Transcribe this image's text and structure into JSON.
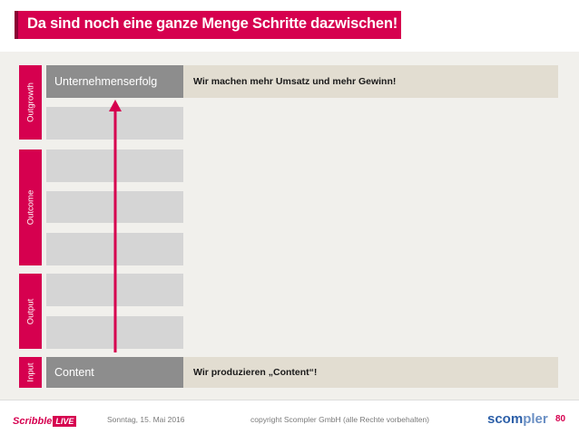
{
  "title": "Da sind noch eine ganze Menge Schritte dazwischen!",
  "sidebar": {
    "outgrowth": "Outgrowth",
    "outcome": "Outcome",
    "output": "Output",
    "input": "Input"
  },
  "rows": {
    "top_label": "Unternehmenserfolg",
    "top_text": "Wir machen mehr Umsatz und mehr Gewinn!",
    "bottom_label": "Content",
    "bottom_text": "Wir produzieren „Content“!"
  },
  "footer": {
    "logo_left_a": "Scribble",
    "logo_left_b": "LIVE",
    "date": "Sonntag, 15. Mai 2016",
    "copyright": "copyright Scompler GmbH (alle Rechte vorbehalten)",
    "logo_right_a": "scom",
    "logo_right_b": "pler",
    "page": "80"
  },
  "colors": {
    "accent": "#d6004f",
    "cell_dark": "#8d8d8d",
    "cell_light": "#d5d5d5",
    "desc_bg": "#e2ddd1"
  }
}
